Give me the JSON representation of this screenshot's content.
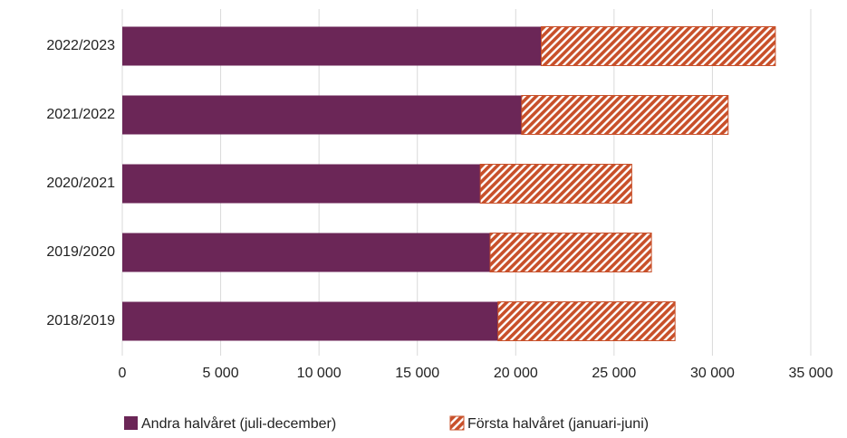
{
  "chart_data": {
    "type": "stacked_barh",
    "categories": [
      "2022/2023",
      "2021/2022",
      "2020/2021",
      "2019/2020",
      "2018/2019"
    ],
    "series": [
      {
        "name": "Andra halvåret (juli-december)",
        "color": "#6b2657",
        "pattern": "solid",
        "values": [
          21300,
          20300,
          18200,
          18700,
          19100
        ]
      },
      {
        "name": "Första halvåret (januari-juni)",
        "color": "#c8502a",
        "pattern": "hatch",
        "values": [
          11900,
          10500,
          7700,
          8200,
          9000
        ]
      }
    ],
    "xlim": [
      0,
      35000
    ],
    "xticks": [
      0,
      {
        "value": 5000,
        "label": "5 000"
      },
      {
        "value": 10000,
        "label": "10 000"
      },
      {
        "value": 15000,
        "label": "15 000"
      },
      {
        "value": 20000,
        "label": "20 000"
      },
      {
        "value": 25000,
        "label": "25 000"
      },
      {
        "value": 30000,
        "label": "30 000"
      },
      {
        "value": 35000,
        "label": "35 000"
      }
    ],
    "grid": true,
    "legend": "bottom"
  }
}
